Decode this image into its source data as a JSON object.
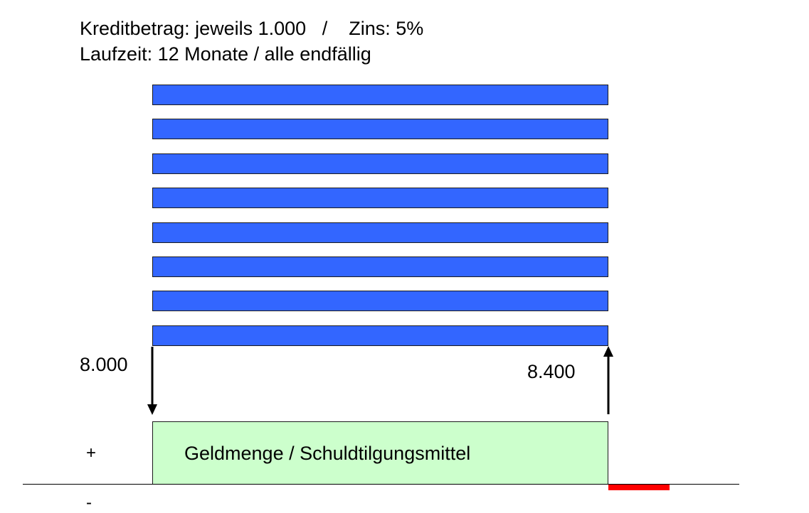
{
  "header": {
    "line1": "Kreditbetrag: jeweils 1.000   /    Zins: 5%",
    "line2": "Laufzeit: 12 Monate / alle endfällig"
  },
  "credits": {
    "count": 8,
    "color": "#3366ff"
  },
  "flows": {
    "outflow_label": "8.000",
    "inflow_label": "8.400"
  },
  "money_box": {
    "label": "Geldmenge / Schuldtilgungsmittel",
    "color": "#ccffcc"
  },
  "signs": {
    "plus": "+",
    "minus": "-"
  },
  "deficit": {
    "color": "#ff0000"
  }
}
